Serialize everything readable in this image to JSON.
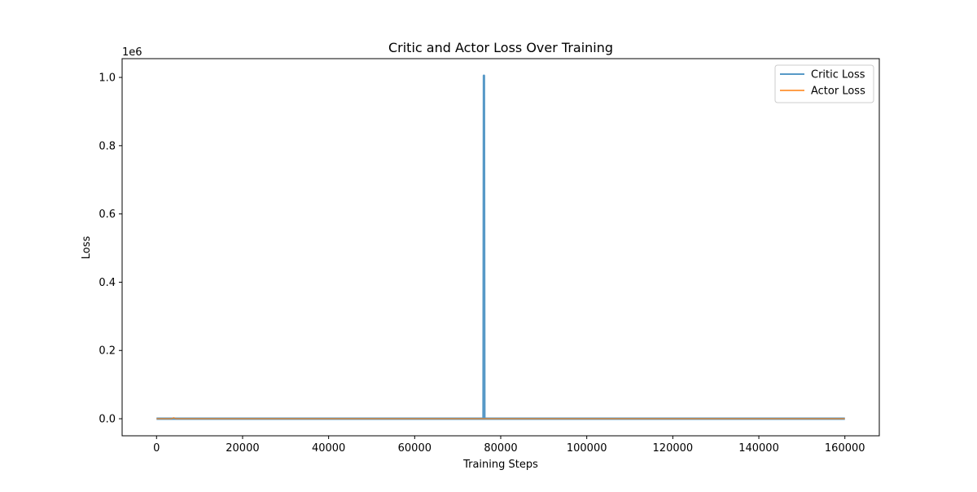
{
  "chart_data": {
    "type": "line",
    "title": "Critic and Actor Loss Over Training",
    "xlabel": "Training Steps",
    "ylabel": "Loss",
    "y_offset_label": "1e6",
    "xlim": [
      -8000,
      168000
    ],
    "ylim": [
      -0.05,
      1.055
    ],
    "x_ticks": [
      0,
      20000,
      40000,
      60000,
      80000,
      100000,
      120000,
      140000,
      160000
    ],
    "x_tick_labels": [
      "0",
      "20000",
      "40000",
      "60000",
      "80000",
      "100000",
      "120000",
      "140000",
      "160000"
    ],
    "y_ticks": [
      0.0,
      0.2,
      0.4,
      0.6,
      0.8,
      1.0
    ],
    "y_tick_labels": [
      "0.0",
      "0.2",
      "0.4",
      "0.6",
      "0.8",
      "1.0"
    ],
    "grid": false,
    "legend_position": "top-right",
    "series": [
      {
        "name": "Critic Loss",
        "color": "#1f77b4",
        "x": [
          0,
          76000,
          76100,
          76200,
          160000
        ],
        "y": [
          0.0,
          0.0,
          1.005,
          0.0,
          0.0
        ]
      },
      {
        "name": "Actor Loss",
        "color": "#ff7f0e",
        "x": [
          0,
          3500,
          4000,
          4500,
          160000
        ],
        "y": [
          0.0,
          0.0,
          0.003,
          0.0,
          0.0
        ]
      }
    ]
  }
}
